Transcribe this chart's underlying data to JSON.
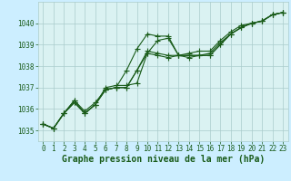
{
  "background_color": "#cceeff",
  "plot_bg_color": "#daf2f2",
  "grid_color": "#aacccc",
  "line_color": "#1a5c1a",
  "title": "Graphe pression niveau de la mer (hPa)",
  "ylim": [
    1034.5,
    1041.0
  ],
  "xlim": [
    -0.5,
    23.5
  ],
  "yticks": [
    1035,
    1036,
    1037,
    1038,
    1039,
    1040
  ],
  "xticks": [
    0,
    1,
    2,
    3,
    4,
    5,
    6,
    7,
    8,
    9,
    10,
    11,
    12,
    13,
    14,
    15,
    16,
    17,
    18,
    19,
    20,
    21,
    22,
    23
  ],
  "series": [
    [
      1035.3,
      1035.1,
      1035.8,
      1036.3,
      1035.8,
      1036.2,
      1036.9,
      1037.0,
      1037.8,
      1038.8,
      1039.5,
      1039.4,
      1039.4,
      1038.5,
      1038.4,
      1038.5,
      1038.5,
      1039.0,
      1039.5,
      1039.8,
      1040.0,
      1040.1,
      1040.4,
      1040.5
    ],
    [
      1035.3,
      1035.1,
      1035.8,
      1036.3,
      1035.8,
      1036.2,
      1036.9,
      1037.0,
      1037.0,
      1037.8,
      1038.7,
      1038.6,
      1038.5,
      1038.5,
      1038.5,
      1038.5,
      1038.5,
      1039.0,
      1039.5,
      1039.8,
      1040.0,
      1040.1,
      1040.4,
      1040.5
    ],
    [
      1035.3,
      1035.1,
      1035.8,
      1036.4,
      1035.9,
      1036.3,
      1036.9,
      1037.0,
      1037.0,
      1037.8,
      1038.6,
      1038.5,
      1038.4,
      1038.5,
      1038.5,
      1038.5,
      1038.6,
      1039.1,
      1039.5,
      1039.8,
      1040.0,
      1040.1,
      1040.4,
      1040.5
    ],
    [
      1035.3,
      1035.1,
      1035.8,
      1036.4,
      1035.8,
      1036.2,
      1037.0,
      1037.1,
      1037.1,
      1037.2,
      1038.6,
      1039.2,
      1039.3,
      1038.5,
      1038.6,
      1038.7,
      1038.7,
      1039.2,
      1039.6,
      1039.9,
      1040.0,
      1040.1,
      1040.4,
      1040.5
    ]
  ],
  "marker": "+",
  "markersize": 4,
  "linewidth": 0.8,
  "title_fontsize": 7,
  "tick_fontsize": 5.5
}
